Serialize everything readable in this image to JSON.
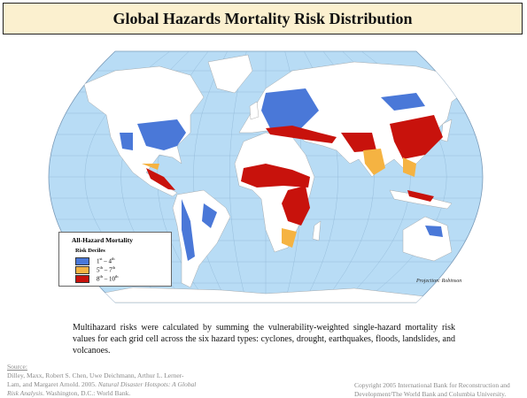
{
  "header": {
    "title": "Global Hazards Mortality Risk Distribution"
  },
  "legend": {
    "title": "All-Hazard Mortality",
    "subtitle": "Risk Deciles",
    "items": [
      {
        "color": "#4a78d8",
        "label": [
          "1",
          "st",
          " – 4",
          "th"
        ]
      },
      {
        "color": "#f5b342",
        "label": [
          "5",
          "th",
          " – 7",
          "th"
        ]
      },
      {
        "color": "#c8120c",
        "label": [
          "8",
          "th",
          " – 10",
          "th"
        ]
      }
    ]
  },
  "map": {
    "projection": "Projection: Robinson"
  },
  "caption": "Multihazard risks were calculated by summing the vulnerability-weighted single-hazard mortality risk values for each grid cell across the six hazard types: cyclones, drought, earthquakes, floods, landslides, and volcanoes.",
  "source": {
    "heading": "Source:",
    "parts": [
      "Dilley, Maxx, Robert S. Chen, Uwe Deichmann, Arthur L. Lerner-Lam, and Margaret Arnold. 2005. ",
      "Natural Disaster Hotspots: A Global Risk Analysis",
      ". Washington, D.C.: World Bank."
    ]
  },
  "copyright": "Copyright 2005 International Bank for Reconstruction and Development/The World Bank and Columbia University."
}
